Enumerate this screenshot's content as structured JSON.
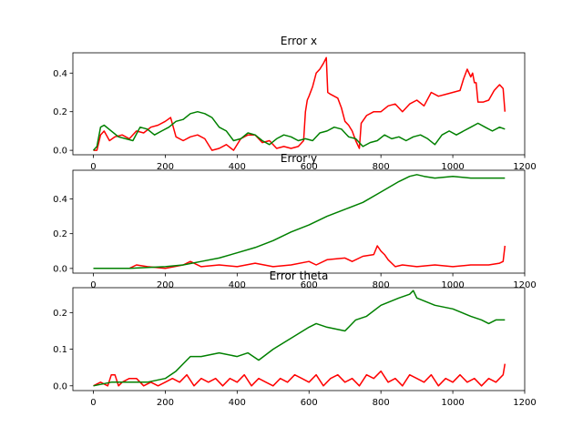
{
  "chart_data": [
    {
      "type": "line",
      "title": "Error x",
      "xlabel": "",
      "ylabel": "",
      "xlim": [
        -57,
        1200
      ],
      "ylim": [
        -0.023,
        0.505
      ],
      "xticks": [
        0,
        200,
        400,
        600,
        800,
        1000,
        1200
      ],
      "yticks": [
        0.0,
        0.2,
        0.4
      ],
      "ytick_labels": [
        "0.0",
        "0.2",
        "0.4"
      ],
      "series": [
        {
          "color": "#ff0000",
          "x": [
            0,
            10,
            20,
            30,
            45,
            60,
            80,
            100,
            120,
            140,
            160,
            180,
            200,
            215,
            230,
            250,
            270,
            290,
            310,
            330,
            350,
            370,
            390,
            410,
            430,
            450,
            470,
            490,
            510,
            530,
            550,
            570,
            585,
            590,
            595,
            600,
            610,
            620,
            630,
            640,
            648,
            652,
            660,
            670,
            680,
            690,
            700,
            710,
            720,
            730,
            740,
            745,
            760,
            780,
            800,
            820,
            840,
            860,
            880,
            900,
            920,
            940,
            960,
            980,
            1000,
            1020,
            1030,
            1040,
            1050,
            1055,
            1060,
            1065,
            1070,
            1085,
            1100,
            1115,
            1130,
            1140,
            1145
          ],
          "y": [
            0.0,
            0.0,
            0.08,
            0.1,
            0.05,
            0.07,
            0.08,
            0.06,
            0.1,
            0.09,
            0.12,
            0.13,
            0.15,
            0.17,
            0.07,
            0.05,
            0.07,
            0.08,
            0.06,
            0.0,
            0.01,
            0.03,
            0.0,
            0.06,
            0.08,
            0.08,
            0.04,
            0.05,
            0.01,
            0.02,
            0.01,
            0.02,
            0.05,
            0.2,
            0.26,
            0.28,
            0.33,
            0.4,
            0.42,
            0.45,
            0.48,
            0.3,
            0.29,
            0.28,
            0.27,
            0.22,
            0.15,
            0.13,
            0.1,
            0.05,
            0.01,
            0.14,
            0.18,
            0.2,
            0.2,
            0.23,
            0.24,
            0.2,
            0.24,
            0.26,
            0.23,
            0.3,
            0.28,
            0.29,
            0.3,
            0.31,
            0.37,
            0.42,
            0.38,
            0.4,
            0.35,
            0.35,
            0.25,
            0.25,
            0.26,
            0.31,
            0.34,
            0.32,
            0.2
          ]
        },
        {
          "color": "#008000",
          "x": [
            0,
            10,
            20,
            30,
            50,
            70,
            90,
            110,
            130,
            150,
            170,
            190,
            210,
            230,
            250,
            270,
            290,
            310,
            330,
            350,
            370,
            390,
            410,
            430,
            450,
            470,
            490,
            510,
            530,
            550,
            570,
            590,
            610,
            630,
            650,
            670,
            690,
            710,
            730,
            750,
            770,
            790,
            810,
            830,
            850,
            870,
            890,
            910,
            930,
            950,
            970,
            990,
            1010,
            1030,
            1050,
            1070,
            1090,
            1110,
            1130,
            1145
          ],
          "y": [
            0.0,
            0.02,
            0.12,
            0.13,
            0.1,
            0.07,
            0.06,
            0.05,
            0.12,
            0.11,
            0.08,
            0.1,
            0.12,
            0.15,
            0.16,
            0.19,
            0.2,
            0.19,
            0.17,
            0.12,
            0.1,
            0.05,
            0.06,
            0.09,
            0.08,
            0.05,
            0.03,
            0.06,
            0.08,
            0.07,
            0.05,
            0.06,
            0.05,
            0.09,
            0.1,
            0.12,
            0.11,
            0.07,
            0.06,
            0.02,
            0.04,
            0.05,
            0.08,
            0.06,
            0.07,
            0.05,
            0.07,
            0.08,
            0.06,
            0.03,
            0.08,
            0.1,
            0.08,
            0.1,
            0.12,
            0.14,
            0.12,
            0.1,
            0.12,
            0.11
          ]
        }
      ]
    },
    {
      "type": "line",
      "title": "Error y",
      "xlabel": "",
      "ylabel": "",
      "xlim": [
        -57,
        1200
      ],
      "ylim": [
        -0.027,
        0.565
      ],
      "xticks": [
        0,
        200,
        400,
        600,
        800,
        1000,
        1200
      ],
      "yticks": [
        0.0,
        0.2,
        0.4
      ],
      "ytick_labels": [
        "0.0",
        "0.2",
        "0.4"
      ],
      "series": [
        {
          "color": "#ff0000",
          "x": [
            0,
            50,
            100,
            120,
            150,
            200,
            250,
            270,
            300,
            350,
            400,
            450,
            500,
            550,
            600,
            620,
            650,
            700,
            720,
            750,
            780,
            790,
            800,
            810,
            820,
            840,
            860,
            900,
            950,
            1000,
            1050,
            1100,
            1130,
            1140,
            1145
          ],
          "y": [
            0.0,
            0.0,
            0.0,
            0.02,
            0.01,
            0.0,
            0.02,
            0.04,
            0.01,
            0.02,
            0.01,
            0.03,
            0.01,
            0.02,
            0.04,
            0.02,
            0.05,
            0.06,
            0.04,
            0.07,
            0.08,
            0.13,
            0.1,
            0.08,
            0.05,
            0.01,
            0.02,
            0.01,
            0.02,
            0.01,
            0.02,
            0.02,
            0.03,
            0.04,
            0.13
          ]
        },
        {
          "color": "#008000",
          "x": [
            0,
            100,
            200,
            250,
            300,
            350,
            400,
            450,
            500,
            550,
            600,
            650,
            700,
            750,
            800,
            850,
            880,
            900,
            920,
            950,
            1000,
            1050,
            1100,
            1145
          ],
          "y": [
            0.0,
            0.0,
            0.01,
            0.02,
            0.04,
            0.06,
            0.09,
            0.12,
            0.16,
            0.21,
            0.25,
            0.3,
            0.34,
            0.38,
            0.44,
            0.5,
            0.53,
            0.54,
            0.53,
            0.52,
            0.53,
            0.52,
            0.52,
            0.52
          ]
        }
      ]
    },
    {
      "type": "line",
      "title": "Error theta",
      "xlabel": "",
      "ylabel": "",
      "xlim": [
        -57,
        1200
      ],
      "ylim": [
        -0.013,
        0.268
      ],
      "xticks": [
        0,
        200,
        400,
        600,
        800,
        1000,
        1200
      ],
      "yticks": [
        0.0,
        0.1,
        0.2
      ],
      "ytick_labels": [
        "0.0",
        "0.1",
        "0.2"
      ],
      "series": [
        {
          "color": "#ff0000",
          "x": [
            0,
            20,
            40,
            50,
            60,
            70,
            80,
            100,
            120,
            140,
            160,
            180,
            200,
            220,
            240,
            260,
            280,
            300,
            320,
            340,
            360,
            380,
            400,
            420,
            440,
            460,
            480,
            500,
            520,
            540,
            560,
            580,
            600,
            620,
            640,
            660,
            680,
            700,
            720,
            740,
            760,
            780,
            800,
            820,
            840,
            860,
            880,
            900,
            920,
            940,
            960,
            980,
            1000,
            1020,
            1040,
            1060,
            1080,
            1100,
            1120,
            1140,
            1145
          ],
          "y": [
            0.0,
            0.01,
            0.0,
            0.03,
            0.03,
            0.0,
            0.01,
            0.02,
            0.02,
            0.0,
            0.01,
            0.0,
            0.01,
            0.02,
            0.01,
            0.03,
            0.0,
            0.02,
            0.01,
            0.02,
            0.0,
            0.02,
            0.01,
            0.03,
            0.0,
            0.02,
            0.01,
            0.0,
            0.02,
            0.01,
            0.03,
            0.02,
            0.01,
            0.03,
            0.0,
            0.02,
            0.03,
            0.01,
            0.02,
            0.0,
            0.03,
            0.02,
            0.04,
            0.01,
            0.02,
            0.0,
            0.03,
            0.02,
            0.01,
            0.03,
            0.0,
            0.02,
            0.01,
            0.03,
            0.01,
            0.02,
            0.0,
            0.02,
            0.01,
            0.03,
            0.06
          ]
        },
        {
          "color": "#008000",
          "x": [
            0,
            50,
            100,
            150,
            200,
            230,
            250,
            270,
            300,
            350,
            400,
            430,
            460,
            500,
            550,
            600,
            620,
            650,
            700,
            730,
            760,
            800,
            850,
            880,
            890,
            900,
            950,
            1000,
            1050,
            1080,
            1100,
            1120,
            1145
          ],
          "y": [
            0.0,
            0.01,
            0.01,
            0.01,
            0.02,
            0.04,
            0.06,
            0.08,
            0.08,
            0.09,
            0.08,
            0.09,
            0.07,
            0.1,
            0.13,
            0.16,
            0.17,
            0.16,
            0.15,
            0.18,
            0.19,
            0.22,
            0.24,
            0.25,
            0.26,
            0.24,
            0.22,
            0.21,
            0.19,
            0.18,
            0.17,
            0.18,
            0.18
          ]
        }
      ]
    }
  ]
}
